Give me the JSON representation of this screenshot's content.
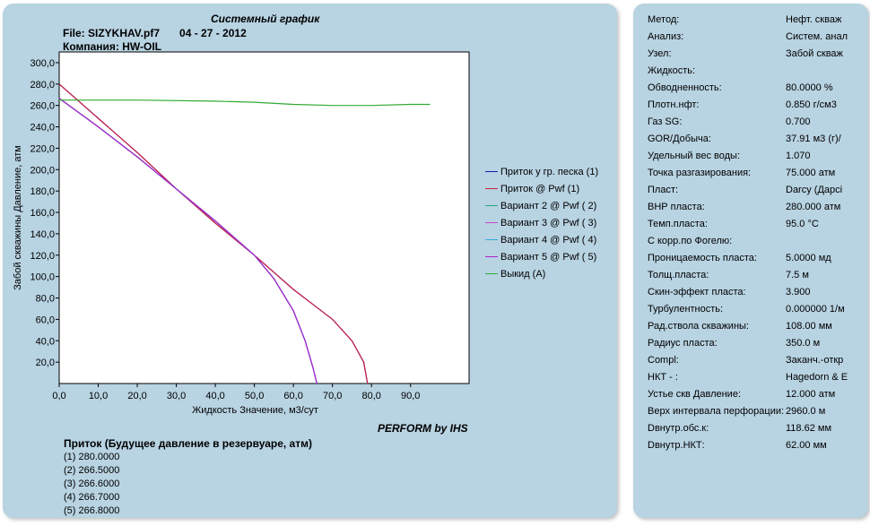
{
  "header": {
    "title": "Системный график",
    "file": "File: SIZYKHAV.pf7",
    "date": "04 - 27 - 2012",
    "company": "Компания: HW-OIL"
  },
  "chart_data": {
    "type": "line",
    "xlabel": "Жидкость Значение, м3/сут",
    "ylabel": "Забой скважины Давление, атм",
    "xlim": [
      0,
      105
    ],
    "ylim": [
      0,
      310
    ],
    "x_ticks": [
      "0,0",
      "10,0",
      "20,0",
      "30,0",
      "40,0",
      "50,0",
      "60,0",
      "70,0",
      "80,0",
      "90,0"
    ],
    "y_ticks": [
      "20,0",
      "40,0",
      "60,0",
      "80,0",
      "100,0",
      "120,0",
      "140,0",
      "160,0",
      "180,0",
      "200,0",
      "220,0",
      "240,0",
      "260,0",
      "280,0",
      "300,0"
    ],
    "legend_position": "right",
    "series": [
      {
        "name": "Приток у гр. песка (1)",
        "color": "#1a1aaa",
        "points": [
          [
            0,
            280
          ],
          [
            10,
            248
          ],
          [
            20,
            216
          ],
          [
            30,
            182
          ],
          [
            40,
            150
          ],
          [
            50,
            120
          ],
          [
            55,
            104
          ],
          [
            60,
            88
          ],
          [
            65,
            74
          ],
          [
            70,
            60
          ],
          [
            75,
            40
          ],
          [
            78,
            20
          ],
          [
            79,
            0
          ]
        ]
      },
      {
        "name": "Приток @ Pwf (1)",
        "color": "#cc2244",
        "points": [
          [
            0,
            280
          ],
          [
            10,
            248
          ],
          [
            20,
            216
          ],
          [
            30,
            182
          ],
          [
            40,
            150
          ],
          [
            50,
            120
          ],
          [
            55,
            104
          ],
          [
            60,
            88
          ],
          [
            65,
            74
          ],
          [
            70,
            60
          ],
          [
            75,
            40
          ],
          [
            78,
            20
          ],
          [
            79,
            0
          ]
        ]
      },
      {
        "name": "Вариант  2 @ Pwf ( 2)",
        "color": "#22aa77",
        "points": [
          [
            0,
            266.5
          ],
          [
            10,
            240
          ],
          [
            20,
            212
          ],
          [
            30,
            182
          ],
          [
            40,
            152
          ],
          [
            50,
            120
          ],
          [
            55,
            98
          ],
          [
            60,
            68
          ],
          [
            63,
            40
          ],
          [
            65,
            15
          ],
          [
            66,
            0
          ]
        ]
      },
      {
        "name": "Вариант  3 @ Pwf ( 3)",
        "color": "#cc44cc",
        "points": [
          [
            0,
            266.6
          ],
          [
            10,
            240
          ],
          [
            20,
            212
          ],
          [
            30,
            182
          ],
          [
            40,
            152
          ],
          [
            50,
            120
          ],
          [
            55,
            98
          ],
          [
            60,
            68
          ],
          [
            63,
            40
          ],
          [
            65,
            15
          ],
          [
            66,
            0
          ]
        ]
      },
      {
        "name": "Вариант  4 @ Pwf ( 4)",
        "color": "#33aadd",
        "points": [
          [
            0,
            266.7
          ],
          [
            10,
            240
          ],
          [
            20,
            212
          ],
          [
            30,
            182
          ],
          [
            40,
            152
          ],
          [
            50,
            120
          ],
          [
            55,
            98
          ],
          [
            60,
            68
          ],
          [
            63,
            40
          ],
          [
            65,
            15
          ],
          [
            66,
            0
          ]
        ]
      },
      {
        "name": "Вариант  5 @ Pwf ( 5)",
        "color": "#aa22cc",
        "points": [
          [
            0,
            266.8
          ],
          [
            10,
            240
          ],
          [
            20,
            212
          ],
          [
            30,
            182
          ],
          [
            40,
            152
          ],
          [
            50,
            120
          ],
          [
            55,
            98
          ],
          [
            60,
            68
          ],
          [
            63,
            40
          ],
          [
            65,
            15
          ],
          [
            66,
            0
          ]
        ]
      },
      {
        "name": "Выкид (A)",
        "color": "#33aa33",
        "points": [
          [
            0,
            265
          ],
          [
            20,
            265
          ],
          [
            40,
            264
          ],
          [
            50,
            263
          ],
          [
            60,
            261
          ],
          [
            70,
            260
          ],
          [
            80,
            260
          ],
          [
            90,
            261
          ],
          [
            95,
            261
          ]
        ]
      }
    ]
  },
  "footer": {
    "perform": "PERFORM by IHS",
    "inflow_title": "Приток (Будущее давление в резервуаре,  атм)",
    "inflow_items": [
      "(1)  280.0000",
      "(2)  266.5000",
      "(3)  266.6000",
      "(4)  266.7000",
      "(5)  266.8000"
    ]
  },
  "properties": [
    {
      "label": "Метод:",
      "value": "Нефт. скваж"
    },
    {
      "label": "Анализ:",
      "value": "Систем. анал"
    },
    {
      "label": "Узел:",
      "value": "Забой скваж"
    },
    {
      "label": "Жидкость:",
      "value": ""
    },
    {
      "label": "Обводненность:",
      "value": "80.0000 %"
    },
    {
      "label": "Плотн.нфт:",
      "value": "0.850 г/см3"
    },
    {
      "label": "Газ SG:",
      "value": "0.700"
    },
    {
      "label": "GOR/Добыча:",
      "value": "37.91 м3 (г)/"
    },
    {
      "label": "Удельный вес воды:",
      "value": "1.070"
    },
    {
      "label": "Точка разгазирования:",
      "value": "75.000 атм"
    },
    {
      "label": "Пласт:",
      "value": "Darcy (Дарсі"
    },
    {
      "label": "ВНР пласта:",
      "value": "280.000 атм"
    },
    {
      "label": "Темп.пласта:",
      "value": "95.0 °C"
    },
    {
      "label": "С корр.по Фогелю:",
      "value": ""
    },
    {
      "label": "Проницаемость пласта:",
      "value": "5.0000 мд"
    },
    {
      "label": "Толщ.пласта:",
      "value": "7.5 м"
    },
    {
      "label": "Скин-эффект пласта:",
      "value": "3.900"
    },
    {
      "label": "Турбулентность:",
      "value": "0.000000 1/м"
    },
    {
      "label": "Рад.ствола скважины:",
      "value": "108.00 мм"
    },
    {
      "label": "Радиус пласта:",
      "value": "350.0 м"
    },
    {
      "label": "Compl:",
      "value": "Заканч.-откр"
    },
    {
      "label": "НКТ - :",
      "value": "Hagedorn & E"
    },
    {
      "label": "Устье скв Давление:",
      "value": "12.000 атм"
    },
    {
      "label": "Верх интервала перфорации:",
      "value": "2960.0 м"
    },
    {
      "label": "Dвнутр.обс.к:",
      "value": "118.62 мм"
    },
    {
      "label": "Dвнутр.НКТ:",
      "value": "62.00 мм"
    }
  ]
}
